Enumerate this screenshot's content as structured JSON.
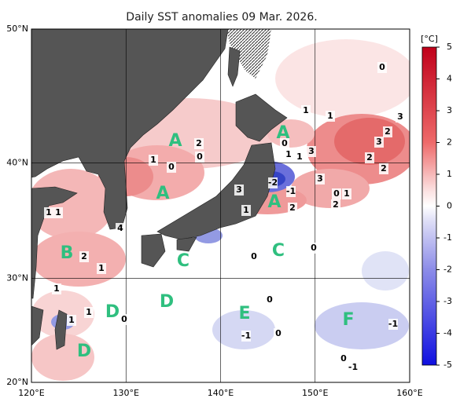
{
  "title": "Daily SST anomalies 09 Mar. 2026.",
  "lon_ticks": [
    {
      "value": 120,
      "label": "120°E"
    },
    {
      "value": 130,
      "label": "130°E"
    },
    {
      "value": 140,
      "label": "140°E"
    },
    {
      "value": 150,
      "label": "150°E"
    },
    {
      "value": 160,
      "label": "160°E"
    }
  ],
  "lat_ticks": [
    {
      "value": 20,
      "label": "20°N"
    },
    {
      "value": 30,
      "label": "30°N"
    },
    {
      "value": 40,
      "label": "40°N"
    },
    {
      "value": 50,
      "label": "50°N"
    }
  ],
  "colorbar": {
    "unit": "[°C]",
    "range": [
      -5,
      5
    ],
    "ticks": [
      5,
      4,
      3,
      2,
      1,
      0,
      -1,
      -2,
      -3,
      -4,
      -5
    ]
  },
  "region_labels": [
    "A",
    "A",
    "A",
    "A",
    "B",
    "C",
    "C",
    "D",
    "D",
    "D",
    "E",
    "F"
  ],
  "contour_labels": [
    "1",
    "1",
    "2",
    "0",
    "1",
    "0",
    "2",
    "1",
    "1",
    "1",
    "1",
    "0",
    "4",
    "0",
    "0",
    "0",
    "1",
    "1",
    "2",
    "3",
    "3",
    "2",
    "2",
    "3",
    "0",
    "1",
    "2",
    "3",
    "-2",
    "-1",
    "2",
    "1",
    "0",
    "1",
    "1",
    "3",
    "0",
    "-1",
    "0",
    "0",
    "-1",
    "-1"
  ]
}
